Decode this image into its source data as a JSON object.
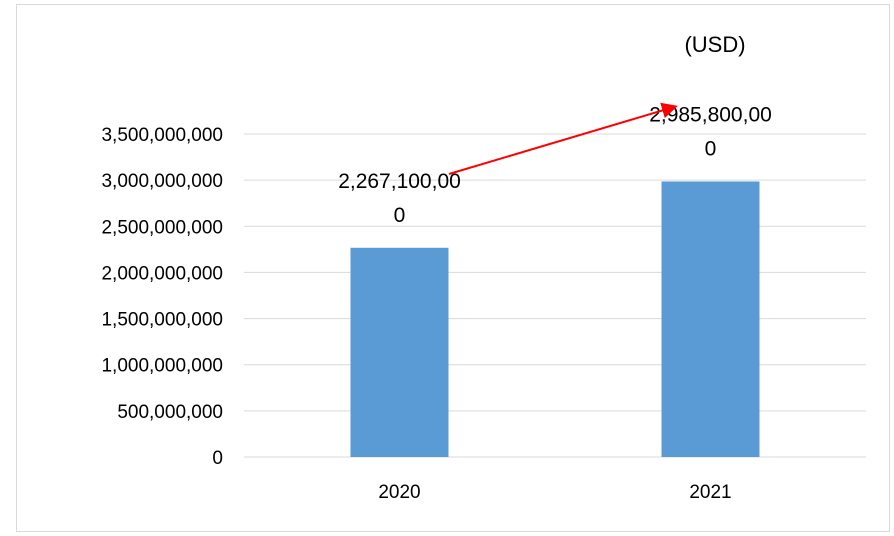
{
  "chart_data": {
    "type": "bar",
    "unit_label": "(USD)",
    "categories": [
      "2020",
      "2021"
    ],
    "values": [
      2267100000,
      2985800000
    ],
    "data_labels": [
      [
        "2,267,100,00",
        "0"
      ],
      [
        "2,985,800,00",
        "0"
      ]
    ],
    "y_ticks": [
      {
        "value": 0,
        "label": "0"
      },
      {
        "value": 500000000,
        "label": "500,000,000"
      },
      {
        "value": 1000000000,
        "label": "1,000,000,000"
      },
      {
        "value": 1500000000,
        "label": "1,500,000,000"
      },
      {
        "value": 2000000000,
        "label": "2,000,000,000"
      },
      {
        "value": 2500000000,
        "label": "2,500,000,000"
      },
      {
        "value": 3000000000,
        "label": "3,000,000,000"
      },
      {
        "value": 3500000000,
        "label": "3,500,000,000"
      }
    ],
    "ylim": [
      0,
      3500000000
    ],
    "grid": true,
    "legend": "none",
    "colors": {
      "bar": "#5b9bd5",
      "gridline": "#d9d9d9",
      "trend_arrow": "#ff0000"
    },
    "annotations": [
      {
        "type": "arrow",
        "description": "trend-up",
        "from_category": "2020",
        "to_category": "2021"
      }
    ]
  }
}
